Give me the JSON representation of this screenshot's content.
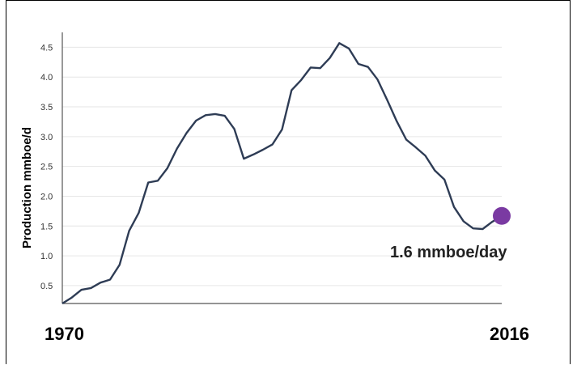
{
  "chart_data": {
    "type": "line",
    "ylabel": "Production mmboe/d",
    "x_start_label": "1970",
    "x_end_label": "2016",
    "annotation": "1.6 mmboe/day",
    "ylim": [
      0.2,
      4.75
    ],
    "xlim": [
      1970,
      2016
    ],
    "yticks": [
      "0.5",
      "1.0",
      "1.5",
      "2.0",
      "2.5",
      "3.0",
      "3.5",
      "4.0",
      "4.5"
    ],
    "ytick_values": [
      0.5,
      1.0,
      1.5,
      2.0,
      2.5,
      3.0,
      3.5,
      4.0,
      4.5
    ],
    "grid": true,
    "colors": {
      "line": "#2e3c55",
      "marker": "#7a3aa2",
      "grid": "#e6e6e6"
    },
    "series": [
      {
        "x": [
          1970,
          1971,
          1972,
          1973,
          1974,
          1975,
          1976,
          1977,
          1978,
          1979,
          1980,
          1981,
          1982,
          1983,
          1984,
          1985,
          1986,
          1987,
          1988,
          1989,
          1990,
          1991,
          1992,
          1993,
          1994,
          1995,
          1996,
          1997,
          1998,
          1999,
          2000,
          2001,
          2002,
          2003,
          2004,
          2005,
          2006,
          2007,
          2008,
          2009,
          2010,
          2011,
          2012,
          2013,
          2014,
          2015,
          2016
        ],
        "values": [
          0.2,
          0.3,
          0.43,
          0.46,
          0.55,
          0.6,
          0.85,
          1.42,
          1.72,
          2.23,
          2.26,
          2.47,
          2.8,
          3.06,
          3.27,
          3.36,
          3.38,
          3.35,
          3.13,
          2.63,
          2.7,
          2.78,
          2.87,
          3.12,
          3.78,
          3.95,
          4.16,
          4.15,
          4.32,
          4.57,
          4.48,
          4.22,
          4.17,
          3.96,
          3.62,
          3.26,
          2.95,
          2.82,
          2.68,
          2.43,
          2.28,
          1.82,
          1.58,
          1.46,
          1.45,
          1.57,
          1.67
        ]
      }
    ],
    "endpoint": {
      "x": 2016,
      "y": 1.67
    }
  }
}
